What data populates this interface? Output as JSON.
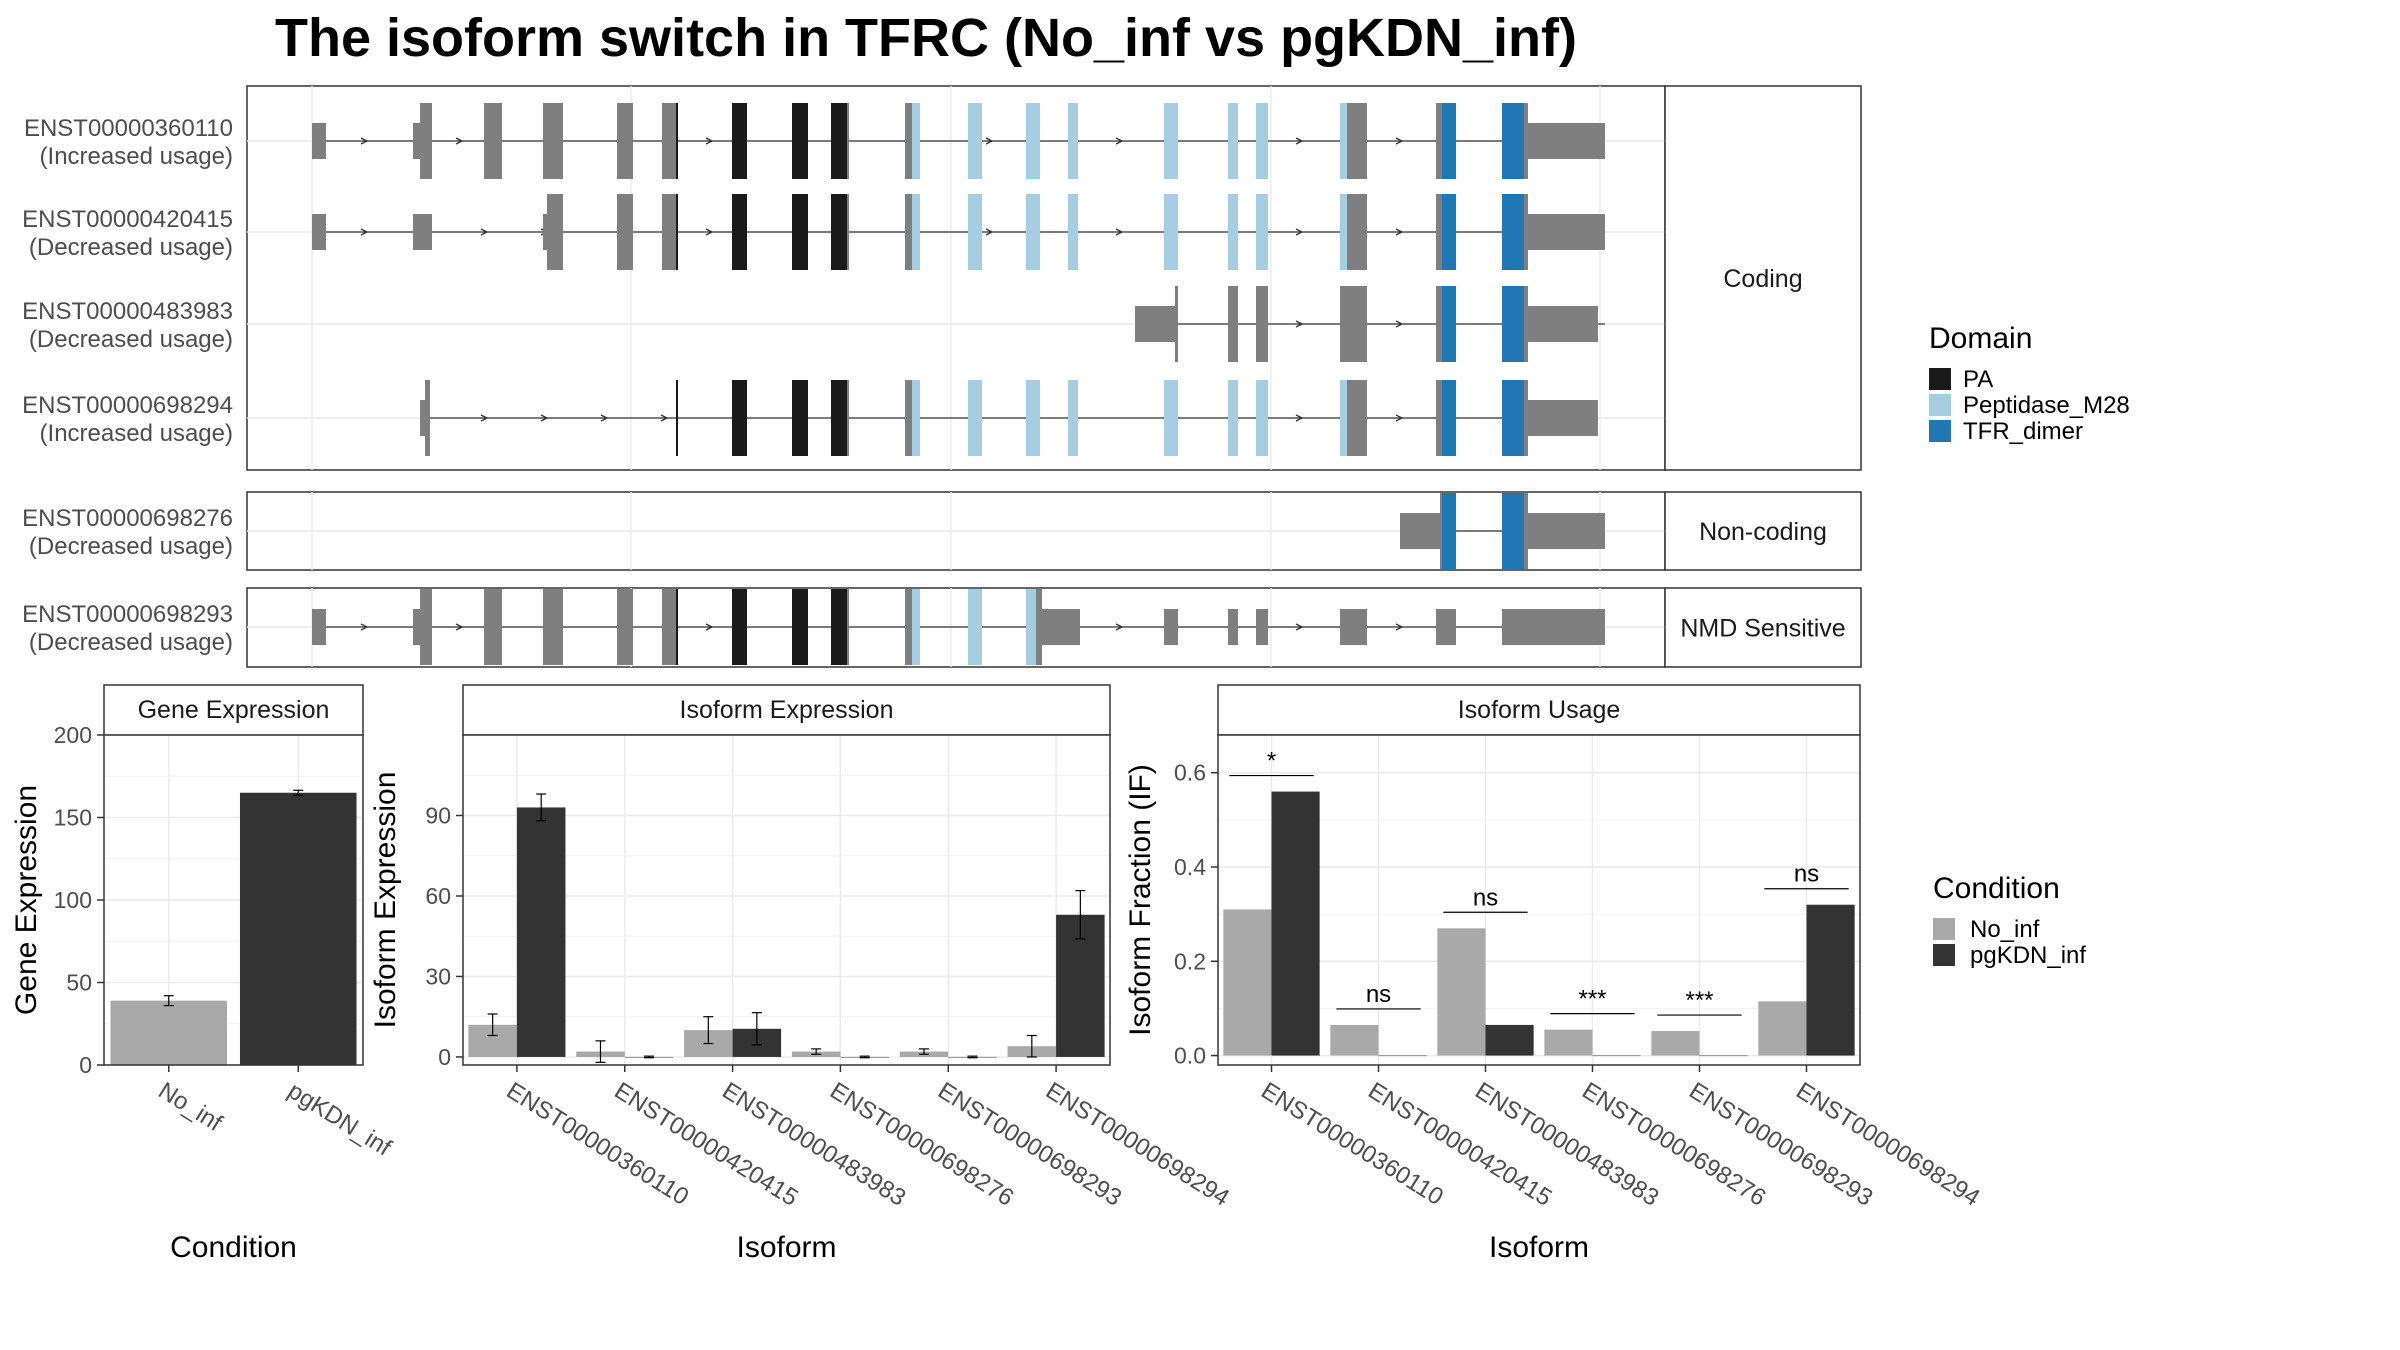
{
  "title": "The isoform switch in TFRC (No_inf vs pgKDN_inf)",
  "colors": {
    "exon": "#7f7f7f",
    "PA": "#1a1a1a",
    "Peptidase_M28": "#a6cee3",
    "TFR_dimer": "#1f78b4",
    "No_inf": "#a9a9a9",
    "pgKDN_inf": "#333333",
    "strip": "#ffffff",
    "grid": "#ebebeb"
  },
  "structure": {
    "facets": [
      {
        "label": "Coding",
        "rows": [
          {
            "id": "ENST00000360110",
            "usage": "(Increased usage)"
          },
          {
            "id": "ENST00000420415",
            "usage": "(Decreased usage)"
          },
          {
            "id": "ENST00000483983",
            "usage": "(Decreased usage)"
          },
          {
            "id": "ENST00000698294",
            "usage": "(Increased usage)"
          }
        ]
      },
      {
        "label": "Non-coding",
        "rows": [
          {
            "id": "ENST00000698276",
            "usage": "(Decreased usage)"
          }
        ]
      },
      {
        "label": "NMD Sensitive",
        "rows": [
          {
            "id": "ENST00000698293",
            "usage": "(Decreased usage)"
          }
        ]
      }
    ],
    "domain_legend": {
      "title": "Domain",
      "items": [
        "PA",
        "Peptidase_M28",
        "TFR_dimer"
      ]
    }
  },
  "condition_legend": {
    "title": "Condition",
    "items": [
      "No_inf",
      "pgKDN_inf"
    ]
  },
  "chart_data": [
    {
      "type": "bar",
      "strip": "Gene Expression",
      "xlabel": "Condition",
      "ylabel": "Gene Expression",
      "categories": [
        "No_inf",
        "pgKDN_inf"
      ],
      "values": [
        39,
        165
      ],
      "errors": [
        3,
        1.5
      ],
      "ylim": [
        0,
        200
      ],
      "yticks": [
        0,
        50,
        100,
        150,
        200
      ]
    },
    {
      "type": "bar",
      "strip": "Isoform Expression",
      "xlabel": "Isoform",
      "ylabel": "Isoform Expression",
      "categories": [
        "ENST00000360110",
        "ENST00000420415",
        "ENST00000483983",
        "ENST00000698276",
        "ENST00000698293",
        "ENST00000698294"
      ],
      "series": [
        {
          "name": "No_inf",
          "values": [
            12,
            2,
            10,
            2,
            2,
            4
          ],
          "errors": [
            4,
            4,
            5,
            1,
            1,
            4
          ]
        },
        {
          "name": "pgKDN_inf",
          "values": [
            93,
            0,
            10.5,
            0,
            0,
            53
          ],
          "errors": [
            5,
            0.3,
            6,
            0.3,
            0.3,
            9
          ]
        }
      ],
      "ylim": [
        -3,
        120
      ],
      "yticks": [
        0,
        30,
        60,
        90
      ]
    },
    {
      "type": "bar",
      "strip": "Isoform Usage",
      "xlabel": "Isoform",
      "ylabel": "Isoform Fraction (IF)",
      "categories": [
        "ENST00000360110",
        "ENST00000420415",
        "ENST00000483983",
        "ENST00000698276",
        "ENST00000698293",
        "ENST00000698294"
      ],
      "series": [
        {
          "name": "No_inf",
          "values": [
            0.31,
            0.065,
            0.27,
            0.055,
            0.052,
            0.115
          ]
        },
        {
          "name": "pgKDN_inf",
          "values": [
            0.56,
            0.0,
            0.065,
            0.0,
            0.0,
            0.32
          ]
        }
      ],
      "significance": [
        "*",
        "ns",
        "ns",
        "***",
        "***",
        "ns"
      ],
      "ylim": [
        -0.02,
        0.68
      ],
      "yticks": [
        0.0,
        0.2,
        0.4,
        0.6
      ]
    }
  ]
}
